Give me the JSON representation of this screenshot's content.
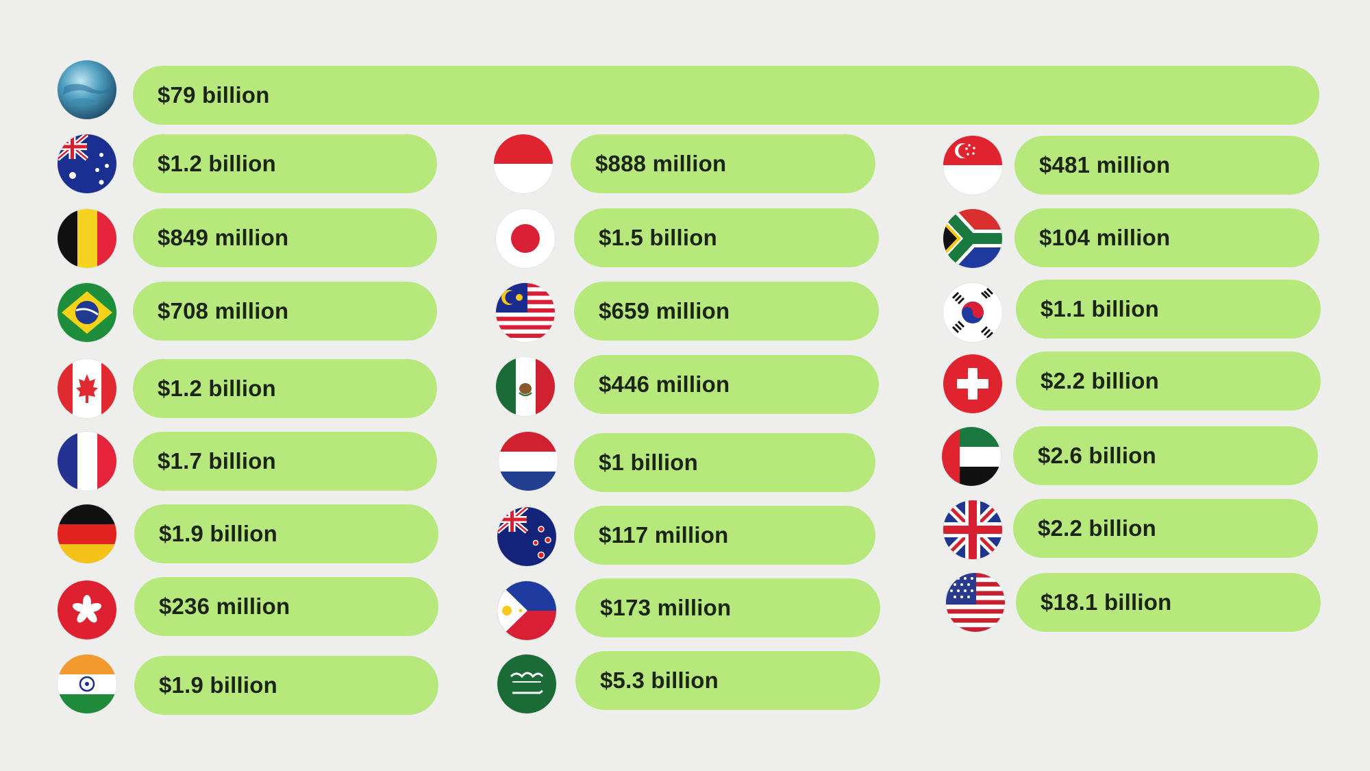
{
  "colors": {
    "background": "#eeefed",
    "pill": "#b6e87c",
    "text": "#1c2416"
  },
  "world": {
    "icon": "globe-icon",
    "label": "$79 billion"
  },
  "countries": [
    {
      "icon": "australia-flag-icon",
      "label": "$1.2 billion"
    },
    {
      "icon": "belgium-flag-icon",
      "label": "$849 million"
    },
    {
      "icon": "brazil-flag-icon",
      "label": "$708 million"
    },
    {
      "icon": "canada-flag-icon",
      "label": "$1.2 billion"
    },
    {
      "icon": "france-flag-icon",
      "label": "$1.7 billion"
    },
    {
      "icon": "germany-flag-icon",
      "label": "$1.9 billion"
    },
    {
      "icon": "hong-kong-flag-icon",
      "label": "$236 million"
    },
    {
      "icon": "india-flag-icon",
      "label": "$1.9 billion"
    },
    {
      "icon": "indonesia-flag-icon",
      "label": "$888 million"
    },
    {
      "icon": "japan-flag-icon",
      "label": "$1.5 billion"
    },
    {
      "icon": "malaysia-flag-icon",
      "label": "$659 million"
    },
    {
      "icon": "mexico-flag-icon",
      "label": "$446 million"
    },
    {
      "icon": "netherlands-flag-icon",
      "label": "$1 billion"
    },
    {
      "icon": "new-zealand-flag-icon",
      "label": "$117 million"
    },
    {
      "icon": "philippines-flag-icon",
      "label": "$173 million"
    },
    {
      "icon": "saudi-arabia-flag-icon",
      "label": "$5.3 billion"
    },
    {
      "icon": "singapore-flag-icon",
      "label": "$481 million"
    },
    {
      "icon": "south-africa-flag-icon",
      "label": "$104 million"
    },
    {
      "icon": "south-korea-flag-icon",
      "label": "$1.1 billion"
    },
    {
      "icon": "switzerland-flag-icon",
      "label": "$2.2 billion"
    },
    {
      "icon": "uae-flag-icon",
      "label": "$2.6 billion"
    },
    {
      "icon": "united-kingdom-flag-icon",
      "label": "$2.2 billion"
    },
    {
      "icon": "united-states-flag-icon",
      "label": "$18.1 billion"
    }
  ]
}
